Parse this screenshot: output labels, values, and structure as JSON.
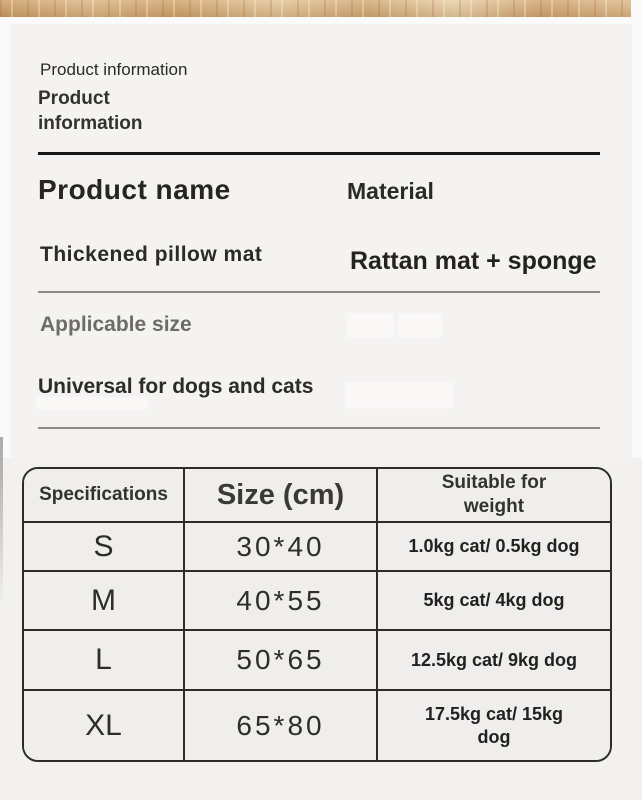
{
  "header": {
    "overline": "Product information",
    "title": "Product information"
  },
  "info": {
    "product_name_label": "Product name",
    "material_label": "Material",
    "product_name_value": "Thickened pillow mat",
    "material_value": "Rattan mat + sponge",
    "size_label": "Applicable size",
    "size_value": "Universal for dogs and cats"
  },
  "table": {
    "headers": [
      "Specifications",
      "Size (cm)",
      "Suitable for weight"
    ],
    "rows": [
      {
        "spec": "S",
        "size": "30*40",
        "weight": "1.0kg cat/ 0.5kg dog"
      },
      {
        "spec": "M",
        "size": "40*55",
        "weight": "5kg cat/ 4kg dog"
      },
      {
        "spec": "L",
        "size": "50*65",
        "weight": "12.5kg cat/ 9kg dog"
      },
      {
        "spec": "XL",
        "size": "65*80",
        "weight": "17.5kg cat/ 15kg dog"
      }
    ]
  },
  "colors": {
    "wood_bar": "#d2a875",
    "panel_background": "#f4f3f1",
    "table_background": "#efeeec",
    "table_border": "#2d2c2a",
    "dark_text": "#2b2a28",
    "gray_label_text": "#6d6c6a"
  }
}
